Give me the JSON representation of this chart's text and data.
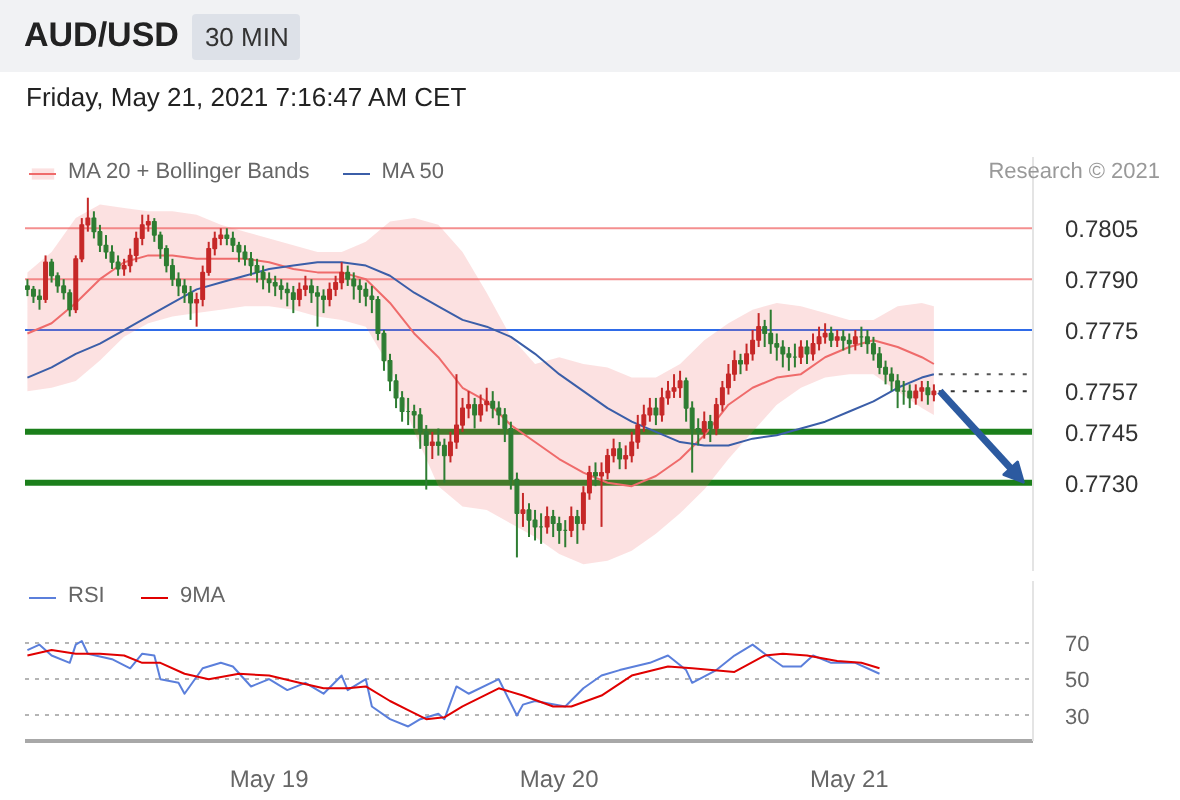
{
  "chart_data": [
    {
      "type": "candlestick",
      "title": "AUD/USD",
      "subtitle": "Friday, May 21, 2021 7:16:47 AM CET",
      "annotations": [
        "30 MIN",
        "Research © 2021"
      ],
      "x": [
        "2021-05-18T04:00",
        "2021-05-18T04:30",
        "2021-05-18T05:00",
        "2021-05-18T05:30",
        "2021-05-18T06:00",
        "2021-05-18T06:30",
        "2021-05-18T07:00",
        "2021-05-18T07:30",
        "2021-05-18T08:00",
        "2021-05-18T08:30",
        "2021-05-18T09:00",
        "2021-05-18T09:30",
        "2021-05-18T10:00",
        "2021-05-18T10:30",
        "2021-05-18T11:00",
        "2021-05-18T11:30",
        "2021-05-18T12:00",
        "2021-05-18T12:30",
        "2021-05-18T13:00",
        "2021-05-18T13:30",
        "2021-05-18T14:00",
        "2021-05-18T14:30",
        "2021-05-18T15:00",
        "2021-05-18T15:30",
        "2021-05-18T16:00",
        "2021-05-18T16:30",
        "2021-05-18T17:00",
        "2021-05-18T17:30",
        "2021-05-18T18:00",
        "2021-05-18T18:30",
        "2021-05-18T19:00",
        "2021-05-18T19:30",
        "2021-05-18T20:00",
        "2021-05-18T20:30",
        "2021-05-18T21:00",
        "2021-05-18T21:30",
        "2021-05-18T22:00",
        "2021-05-18T22:30",
        "2021-05-18T23:00",
        "2021-05-18T23:30",
        "2021-05-19T00:00",
        "2021-05-19T00:30",
        "2021-05-19T01:00",
        "2021-05-19T01:30",
        "2021-05-19T02:00",
        "2021-05-19T02:30",
        "2021-05-19T03:00",
        "2021-05-19T03:30",
        "2021-05-19T04:00",
        "2021-05-19T04:30",
        "2021-05-19T05:00",
        "2021-05-19T05:30",
        "2021-05-19T06:00",
        "2021-05-19T06:30",
        "2021-05-19T07:00",
        "2021-05-19T07:30",
        "2021-05-19T08:00",
        "2021-05-19T08:30",
        "2021-05-19T09:00",
        "2021-05-19T09:30",
        "2021-05-19T10:00",
        "2021-05-19T10:30",
        "2021-05-19T11:00",
        "2021-05-19T11:30",
        "2021-05-19T12:00",
        "2021-05-19T12:30",
        "2021-05-19T13:00",
        "2021-05-19T13:30",
        "2021-05-19T14:00",
        "2021-05-19T14:30",
        "2021-05-19T15:00",
        "2021-05-19T15:30",
        "2021-05-19T16:00",
        "2021-05-19T16:30",
        "2021-05-19T17:00",
        "2021-05-19T17:30",
        "2021-05-19T18:00",
        "2021-05-19T18:30",
        "2021-05-19T19:00",
        "2021-05-19T19:30",
        "2021-05-19T20:00",
        "2021-05-19T20:30",
        "2021-05-19T21:00",
        "2021-05-19T21:30",
        "2021-05-19T22:00",
        "2021-05-19T22:30",
        "2021-05-19T23:00",
        "2021-05-19T23:30",
        "2021-05-20T00:00",
        "2021-05-20T00:30",
        "2021-05-20T01:00",
        "2021-05-20T01:30",
        "2021-05-20T02:00",
        "2021-05-20T02:30",
        "2021-05-20T03:00",
        "2021-05-20T03:30",
        "2021-05-20T04:00",
        "2021-05-20T04:30",
        "2021-05-20T05:00",
        "2021-05-20T05:30",
        "2021-05-20T06:00",
        "2021-05-20T06:30",
        "2021-05-20T07:00",
        "2021-05-20T07:30",
        "2021-05-20T08:00",
        "2021-05-20T08:30",
        "2021-05-20T09:00",
        "2021-05-20T09:30",
        "2021-05-20T10:00",
        "2021-05-20T10:30",
        "2021-05-20T11:00",
        "2021-05-20T11:30",
        "2021-05-20T12:00",
        "2021-05-20T12:30",
        "2021-05-20T13:00",
        "2021-05-20T13:30",
        "2021-05-20T14:00",
        "2021-05-20T14:30",
        "2021-05-20T15:00",
        "2021-05-20T15:30",
        "2021-05-20T16:00",
        "2021-05-20T16:30",
        "2021-05-20T17:00",
        "2021-05-20T17:30",
        "2021-05-20T18:00",
        "2021-05-20T18:30",
        "2021-05-20T19:00",
        "2021-05-20T19:30",
        "2021-05-20T20:00",
        "2021-05-20T20:30",
        "2021-05-20T21:00",
        "2021-05-20T21:30",
        "2021-05-20T22:00",
        "2021-05-20T22:30",
        "2021-05-20T23:00",
        "2021-05-20T23:30",
        "2021-05-21T00:00",
        "2021-05-21T00:30",
        "2021-05-21T01:00",
        "2021-05-21T01:30",
        "2021-05-21T02:00",
        "2021-05-21T02:30",
        "2021-05-21T03:00",
        "2021-05-21T03:30",
        "2021-05-21T04:00",
        "2021-05-21T04:30",
        "2021-05-21T05:00",
        "2021-05-21T05:30",
        "2021-05-21T06:00",
        "2021-05-21T06:30",
        "2021-05-21T07:00"
      ],
      "ohlc": [
        [
          0.7788,
          0.779,
          0.7785,
          0.7787
        ],
        [
          0.7787,
          0.7788,
          0.7783,
          0.7785
        ],
        [
          0.7785,
          0.7787,
          0.7781,
          0.7784
        ],
        [
          0.7784,
          0.7797,
          0.7783,
          0.7795
        ],
        [
          0.7795,
          0.7796,
          0.7789,
          0.7791
        ],
        [
          0.7791,
          0.7792,
          0.7786,
          0.7788
        ],
        [
          0.7788,
          0.779,
          0.7784,
          0.7786
        ],
        [
          0.7786,
          0.7787,
          0.7779,
          0.7781
        ],
        [
          0.7781,
          0.7797,
          0.778,
          0.7796
        ],
        [
          0.7796,
          0.7808,
          0.7795,
          0.7806
        ],
        [
          0.7806,
          0.7814,
          0.7804,
          0.7808
        ],
        [
          0.7808,
          0.781,
          0.7802,
          0.7804
        ],
        [
          0.7804,
          0.7806,
          0.7798,
          0.78
        ],
        [
          0.78,
          0.7803,
          0.7796,
          0.7798
        ],
        [
          0.7798,
          0.78,
          0.7793,
          0.7795
        ],
        [
          0.7795,
          0.7797,
          0.7791,
          0.7793
        ],
        [
          0.7793,
          0.7796,
          0.7791,
          0.7794
        ],
        [
          0.7794,
          0.7799,
          0.7792,
          0.7797
        ],
        [
          0.7797,
          0.7804,
          0.7795,
          0.7802
        ],
        [
          0.7802,
          0.7809,
          0.78,
          0.7806
        ],
        [
          0.7806,
          0.7809,
          0.7804,
          0.7807
        ],
        [
          0.7807,
          0.7808,
          0.7801,
          0.7803
        ],
        [
          0.7803,
          0.7804,
          0.7796,
          0.7799
        ],
        [
          0.7799,
          0.78,
          0.7792,
          0.7794
        ],
        [
          0.7794,
          0.7796,
          0.7788,
          0.779
        ],
        [
          0.779,
          0.7792,
          0.7785,
          0.7788
        ],
        [
          0.7788,
          0.779,
          0.7783,
          0.7786
        ],
        [
          0.7786,
          0.7788,
          0.7778,
          0.7783
        ],
        [
          0.7783,
          0.7786,
          0.7776,
          0.7784
        ],
        [
          0.7784,
          0.7794,
          0.7782,
          0.7792
        ],
        [
          0.7792,
          0.7801,
          0.7791,
          0.7799
        ],
        [
          0.7799,
          0.7804,
          0.7797,
          0.7802
        ],
        [
          0.7802,
          0.7805,
          0.78,
          0.7803
        ],
        [
          0.7803,
          0.7805,
          0.78,
          0.7802
        ],
        [
          0.7802,
          0.7804,
          0.7798,
          0.78
        ],
        [
          0.78,
          0.7801,
          0.7795,
          0.7798
        ],
        [
          0.7798,
          0.78,
          0.7794,
          0.7796
        ],
        [
          0.7796,
          0.7798,
          0.7791,
          0.7794
        ],
        [
          0.7794,
          0.7796,
          0.7789,
          0.7792
        ],
        [
          0.7792,
          0.7794,
          0.7787,
          0.779
        ],
        [
          0.779,
          0.7792,
          0.7786,
          0.7789
        ],
        [
          0.7789,
          0.7791,
          0.7785,
          0.7788
        ],
        [
          0.7788,
          0.779,
          0.7784,
          0.7787
        ],
        [
          0.7787,
          0.7789,
          0.7782,
          0.7786
        ],
        [
          0.7786,
          0.7788,
          0.778,
          0.7784
        ],
        [
          0.7784,
          0.7789,
          0.7782,
          0.7787
        ],
        [
          0.7787,
          0.7791,
          0.7785,
          0.7788
        ],
        [
          0.7788,
          0.779,
          0.7783,
          0.7786
        ],
        [
          0.7786,
          0.7788,
          0.7776,
          0.7785
        ],
        [
          0.7785,
          0.7787,
          0.778,
          0.7784
        ],
        [
          0.7784,
          0.7789,
          0.7782,
          0.7787
        ],
        [
          0.7787,
          0.7791,
          0.7785,
          0.7789
        ],
        [
          0.7789,
          0.7795,
          0.7787,
          0.7792
        ],
        [
          0.7792,
          0.7794,
          0.7788,
          0.779
        ],
        [
          0.779,
          0.7792,
          0.7784,
          0.7788
        ],
        [
          0.7788,
          0.779,
          0.7783,
          0.7787
        ],
        [
          0.7787,
          0.7789,
          0.7782,
          0.7785
        ],
        [
          0.7785,
          0.7788,
          0.778,
          0.7784
        ],
        [
          0.7784,
          0.7785,
          0.7772,
          0.7774
        ],
        [
          0.7774,
          0.7775,
          0.7763,
          0.7766
        ],
        [
          0.7766,
          0.7768,
          0.7757,
          0.776
        ],
        [
          0.776,
          0.7762,
          0.7752,
          0.7755
        ],
        [
          0.7755,
          0.7757,
          0.7748,
          0.7751
        ],
        [
          0.7751,
          0.7755,
          0.7747,
          0.7751
        ],
        [
          0.7751,
          0.7753,
          0.7746,
          0.775
        ],
        [
          0.775,
          0.7752,
          0.774,
          0.7745
        ],
        [
          0.7745,
          0.7747,
          0.7728,
          0.7741
        ],
        [
          0.7741,
          0.7745,
          0.7737,
          0.7742
        ],
        [
          0.7742,
          0.7746,
          0.7738,
          0.7741
        ],
        [
          0.7741,
          0.7743,
          0.773,
          0.7738
        ],
        [
          0.7738,
          0.7745,
          0.7736,
          0.7742
        ],
        [
          0.7742,
          0.7762,
          0.774,
          0.7747
        ],
        [
          0.7747,
          0.7755,
          0.7745,
          0.7752
        ],
        [
          0.7752,
          0.7757,
          0.7749,
          0.7753
        ],
        [
          0.7753,
          0.7755,
          0.7746,
          0.775
        ],
        [
          0.775,
          0.7756,
          0.7748,
          0.7753
        ],
        [
          0.7753,
          0.7758,
          0.7751,
          0.7754
        ],
        [
          0.7754,
          0.7757,
          0.7749,
          0.7752
        ],
        [
          0.7752,
          0.7754,
          0.7747,
          0.775
        ],
        [
          0.775,
          0.7752,
          0.7742,
          0.7746
        ],
        [
          0.7746,
          0.7748,
          0.7728,
          0.7731
        ],
        [
          0.7731,
          0.7733,
          0.7708,
          0.7721
        ],
        [
          0.7721,
          0.7727,
          0.7717,
          0.7722
        ],
        [
          0.7722,
          0.7724,
          0.7714,
          0.7719
        ],
        [
          0.7719,
          0.7722,
          0.7713,
          0.7717
        ],
        [
          0.7717,
          0.7721,
          0.7712,
          0.7717
        ],
        [
          0.7717,
          0.7723,
          0.7715,
          0.772
        ],
        [
          0.772,
          0.7722,
          0.7714,
          0.7718
        ],
        [
          0.7718,
          0.772,
          0.7712,
          0.7716
        ],
        [
          0.7716,
          0.7719,
          0.7711,
          0.7716
        ],
        [
          0.7716,
          0.7723,
          0.7714,
          0.772
        ],
        [
          0.772,
          0.7722,
          0.7712,
          0.7718
        ],
        [
          0.7718,
          0.7729,
          0.7716,
          0.7727
        ],
        [
          0.7727,
          0.7735,
          0.7725,
          0.7733
        ],
        [
          0.7733,
          0.7736,
          0.7729,
          0.7732
        ],
        [
          0.7732,
          0.7736,
          0.7717,
          0.7733
        ],
        [
          0.7733,
          0.774,
          0.7731,
          0.7738
        ],
        [
          0.7738,
          0.7743,
          0.7736,
          0.774
        ],
        [
          0.774,
          0.7742,
          0.7734,
          0.7737
        ],
        [
          0.7737,
          0.7741,
          0.7734,
          0.7738
        ],
        [
          0.7738,
          0.7745,
          0.7736,
          0.7742
        ],
        [
          0.7742,
          0.775,
          0.774,
          0.7747
        ],
        [
          0.7747,
          0.7753,
          0.7745,
          0.775
        ],
        [
          0.775,
          0.7755,
          0.7748,
          0.7752
        ],
        [
          0.7752,
          0.7755,
          0.7747,
          0.775
        ],
        [
          0.775,
          0.7758,
          0.7748,
          0.7755
        ],
        [
          0.7755,
          0.776,
          0.7753,
          0.7757
        ],
        [
          0.7757,
          0.7762,
          0.7755,
          0.7758
        ],
        [
          0.7758,
          0.7763,
          0.7755,
          0.776
        ],
        [
          0.776,
          0.7761,
          0.7748,
          0.7752
        ],
        [
          0.7752,
          0.7754,
          0.7733,
          0.7746
        ],
        [
          0.7746,
          0.7749,
          0.7741,
          0.7745
        ],
        [
          0.7745,
          0.7751,
          0.7743,
          0.7748
        ],
        [
          0.7748,
          0.775,
          0.7742,
          0.7746
        ],
        [
          0.7746,
          0.7755,
          0.7744,
          0.7753
        ],
        [
          0.7753,
          0.776,
          0.7751,
          0.7758
        ],
        [
          0.7758,
          0.7765,
          0.7756,
          0.7762
        ],
        [
          0.7762,
          0.7769,
          0.776,
          0.7766
        ],
        [
          0.7766,
          0.7768,
          0.7762,
          0.7765
        ],
        [
          0.7765,
          0.7771,
          0.7763,
          0.7768
        ],
        [
          0.7768,
          0.7775,
          0.7766,
          0.7772
        ],
        [
          0.7772,
          0.778,
          0.777,
          0.7776
        ],
        [
          0.7776,
          0.7778,
          0.777,
          0.7774
        ],
        [
          0.7774,
          0.7781,
          0.7768,
          0.7771
        ],
        [
          0.7771,
          0.7774,
          0.7766,
          0.777
        ],
        [
          0.777,
          0.7772,
          0.7764,
          0.7768
        ],
        [
          0.7768,
          0.777,
          0.7763,
          0.7767
        ],
        [
          0.7767,
          0.7771,
          0.7764,
          0.7767
        ],
        [
          0.7767,
          0.7772,
          0.7765,
          0.777
        ],
        [
          0.777,
          0.7772,
          0.7765,
          0.7768
        ],
        [
          0.7768,
          0.7774,
          0.7766,
          0.7771
        ],
        [
          0.7771,
          0.7776,
          0.7769,
          0.7773
        ],
        [
          0.7773,
          0.7777,
          0.7771,
          0.7774
        ],
        [
          0.7774,
          0.7776,
          0.777,
          0.7772
        ],
        [
          0.7772,
          0.7775,
          0.777,
          0.7773
        ],
        [
          0.7773,
          0.7775,
          0.7769,
          0.7772
        ],
        [
          0.7772,
          0.7774,
          0.7768,
          0.7771
        ],
        [
          0.7771,
          0.7775,
          0.7769,
          0.7773
        ],
        [
          0.7773,
          0.7776,
          0.777,
          0.7773
        ],
        [
          0.7773,
          0.7775,
          0.7768,
          0.7771
        ],
        [
          0.7771,
          0.7773,
          0.7766,
          0.7768
        ],
        [
          0.7768,
          0.777,
          0.7762,
          0.7764
        ],
        [
          0.7764,
          0.7766,
          0.7759,
          0.7762
        ],
        [
          0.7762,
          0.7764,
          0.7757,
          0.776
        ],
        [
          0.776,
          0.7762,
          0.7752,
          0.7757
        ],
        [
          0.7757,
          0.776,
          0.7753,
          0.7757
        ],
        [
          0.7757,
          0.7759,
          0.7752,
          0.7755
        ],
        [
          0.7755,
          0.7759,
          0.7753,
          0.7757
        ],
        [
          0.7757,
          0.776,
          0.7754,
          0.7758
        ],
        [
          0.7758,
          0.776,
          0.7753,
          0.7756
        ],
        [
          0.7756,
          0.7759,
          0.7754,
          0.7757
        ]
      ],
      "colors": [
        "#2e7d32",
        "#2e7d32",
        "#2e7d32",
        "#c62828",
        "#2e7d32",
        "#2e7d32",
        "#2e7d32",
        "#2e7d32",
        "#c62828",
        "#c62828",
        "#c62828",
        "#2e7d32",
        "#2e7d32",
        "#2e7d32",
        "#2e7d32",
        "#2e7d32",
        "#c62828",
        "#c62828",
        "#c62828",
        "#c62828",
        "#c62828",
        "#2e7d32",
        "#2e7d32",
        "#2e7d32",
        "#2e7d32",
        "#2e7d32",
        "#2e7d32",
        "#2e7d32",
        "#c62828",
        "#c62828",
        "#c62828",
        "#c62828",
        "#c62828",
        "#2e7d32",
        "#2e7d32",
        "#2e7d32",
        "#2e7d32",
        "#2e7d32",
        "#2e7d32",
        "#2e7d32",
        "#2e7d32",
        "#2e7d32",
        "#2e7d32",
        "#2e7d32",
        "#2e7d32",
        "#c62828",
        "#c62828",
        "#2e7d32",
        "#2e7d32",
        "#2e7d32",
        "#c62828",
        "#c62828",
        "#c62828",
        "#2e7d32",
        "#2e7d32",
        "#2e7d32",
        "#2e7d32",
        "#2e7d32",
        "#2e7d32",
        "#2e7d32",
        "#2e7d32",
        "#2e7d32",
        "#2e7d32",
        "#2e7d32",
        "#2e7d32",
        "#2e7d32",
        "#2e7d32",
        "#c62828",
        "#2e7d32",
        "#2e7d32",
        "#c62828",
        "#c62828",
        "#c62828",
        "#c62828",
        "#2e7d32",
        "#c62828",
        "#c62828",
        "#2e7d32",
        "#2e7d32",
        "#2e7d32",
        "#2e7d32",
        "#2e7d32",
        "#c62828",
        "#2e7d32",
        "#2e7d32",
        "#2e7d32",
        "#c62828",
        "#2e7d32",
        "#2e7d32",
        "#2e7d32",
        "#c62828",
        "#2e7d32",
        "#c62828",
        "#c62828",
        "#2e7d32",
        "#c62828",
        "#c62828",
        "#c62828",
        "#2e7d32",
        "#c62828",
        "#c62828",
        "#c62828",
        "#c62828",
        "#c62828",
        "#2e7d32",
        "#c62828",
        "#c62828",
        "#c62828",
        "#c62828",
        "#2e7d32",
        "#2e7d32",
        "#2e7d32",
        "#c62828",
        "#2e7d32",
        "#c62828",
        "#c62828",
        "#c62828",
        "#c62828",
        "#2e7d32",
        "#c62828",
        "#c62828",
        "#c62828",
        "#2e7d32",
        "#2e7d32",
        "#2e7d32",
        "#2e7d32",
        "#2e7d32",
        "#2e7d32",
        "#c62828",
        "#2e7d32",
        "#c62828",
        "#c62828",
        "#c62828",
        "#2e7d32",
        "#c62828",
        "#2e7d32",
        "#2e7d32",
        "#c62828",
        "#2e7d32",
        "#2e7d32",
        "#2e7d32",
        "#2e7d32",
        "#2e7d32",
        "#2e7d32",
        "#2e7d32",
        "#2e7d32",
        "#2e7d32",
        "#c62828",
        "#c62828",
        "#2e7d32",
        "#c62828"
      ],
      "xlim": [
        "2021-05-18T03:48",
        "2021-05-21T15:12"
      ],
      "ylim": [
        0.7704,
        0.7826
      ],
      "yticks": [
        {
          "value": 0.773,
          "label": "0.7730"
        },
        0.7745,
        0.7757,
        0.7775,
        {
          "value": 0.779,
          "label": "0.7790"
        },
        0.7805
      ],
      "tick_labels": "y",
      "legend": "top left",
      "series": [
        {
          "name": "MA 20 + Bollinger Bands",
          "type": "line",
          "color": "#ef6b6b",
          "x": [
            "2021-05-18T04:00",
            "2021-05-18T06:00",
            "2021-05-18T08:00",
            "2021-05-18T10:00",
            "2021-05-18T12:00",
            "2021-05-18T14:00",
            "2021-05-18T16:00",
            "2021-05-18T18:00",
            "2021-05-18T20:00",
            "2021-05-18T22:00",
            "2021-05-19T00:00",
            "2021-05-19T02:00",
            "2021-05-19T04:00",
            "2021-05-19T06:00",
            "2021-05-19T08:00",
            "2021-05-19T10:00",
            "2021-05-19T12:00",
            "2021-05-19T14:00",
            "2021-05-19T16:00",
            "2021-05-19T18:00",
            "2021-05-19T20:00",
            "2021-05-19T22:00",
            "2021-05-20T00:00",
            "2021-05-20T02:00",
            "2021-05-20T04:00",
            "2021-05-20T06:00",
            "2021-05-20T08:00",
            "2021-05-20T10:00",
            "2021-05-20T12:00",
            "2021-05-20T14:00",
            "2021-05-20T16:00",
            "2021-05-20T18:00",
            "2021-05-20T20:00",
            "2021-05-20T22:00",
            "2021-05-21T00:00",
            "2021-05-21T02:00",
            "2021-05-21T04:00",
            "2021-05-21T06:00",
            "2021-05-21T07:00"
          ],
          "values": [
            0.7774,
            0.7777,
            0.7783,
            0.779,
            0.7795,
            0.7797,
            0.7797,
            0.7796,
            0.7796,
            0.7796,
            0.7795,
            0.7793,
            0.7792,
            0.7792,
            0.779,
            0.7783,
            0.7774,
            0.7767,
            0.7758,
            0.7754,
            0.7747,
            0.7742,
            0.7737,
            0.7733,
            0.773,
            0.7729,
            0.7732,
            0.7737,
            0.7744,
            0.7753,
            0.7758,
            0.7761,
            0.7762,
            0.7767,
            0.777,
            0.7772,
            0.777,
            0.7767,
            0.7765
          ],
          "upper": [
            0.7792,
            0.7798,
            0.7808,
            0.7812,
            0.7811,
            0.781,
            0.781,
            0.7809,
            0.7806,
            0.7804,
            0.7802,
            0.78,
            0.7798,
            0.7798,
            0.7801,
            0.7807,
            0.7808,
            0.7806,
            0.7798,
            0.7786,
            0.7773,
            0.7765,
            0.7767,
            0.7765,
            0.7764,
            0.7761,
            0.7761,
            0.7765,
            0.7772,
            0.7777,
            0.7781,
            0.7783,
            0.7782,
            0.778,
            0.7778,
            0.7778,
            0.7782,
            0.7783,
            0.7782
          ],
          "lower": [
            0.7757,
            0.7758,
            0.776,
            0.7766,
            0.7773,
            0.7777,
            0.7779,
            0.778,
            0.7781,
            0.7782,
            0.7782,
            0.7781,
            0.7779,
            0.7778,
            0.7776,
            0.7764,
            0.7745,
            0.7729,
            0.7723,
            0.7722,
            0.7718,
            0.7714,
            0.7709,
            0.7706,
            0.7707,
            0.771,
            0.7715,
            0.7721,
            0.7728,
            0.7737,
            0.7745,
            0.7753,
            0.7758,
            0.7761,
            0.7762,
            0.7762,
            0.7757,
            0.7752,
            0.775
          ]
        },
        {
          "name": "MA 50",
          "type": "line",
          "color": "#3b5ea8",
          "x": [
            "2021-05-18T04:00",
            "2021-05-18T06:00",
            "2021-05-18T08:00",
            "2021-05-18T10:00",
            "2021-05-18T12:00",
            "2021-05-18T14:00",
            "2021-05-18T16:00",
            "2021-05-18T18:00",
            "2021-05-18T20:00",
            "2021-05-18T22:00",
            "2021-05-19T00:00",
            "2021-05-19T02:00",
            "2021-05-19T04:00",
            "2021-05-19T06:00",
            "2021-05-19T08:00",
            "2021-05-19T10:00",
            "2021-05-19T12:00",
            "2021-05-19T14:00",
            "2021-05-19T16:00",
            "2021-05-19T18:00",
            "2021-05-19T20:00",
            "2021-05-19T22:00",
            "2021-05-20T00:00",
            "2021-05-20T02:00",
            "2021-05-20T04:00",
            "2021-05-20T06:00",
            "2021-05-20T08:00",
            "2021-05-20T10:00",
            "2021-05-20T12:00",
            "2021-05-20T14:00",
            "2021-05-20T16:00",
            "2021-05-20T18:00",
            "2021-05-20T20:00",
            "2021-05-20T22:00",
            "2021-05-21T00:00",
            "2021-05-21T02:00",
            "2021-05-21T04:00",
            "2021-05-21T06:00",
            "2021-05-21T07:00"
          ],
          "values": [
            0.7761,
            0.7764,
            0.7768,
            0.7771,
            0.7775,
            0.7779,
            0.7783,
            0.7787,
            0.7789,
            0.7791,
            0.7793,
            0.7794,
            0.7795,
            0.7795,
            0.7794,
            0.7791,
            0.7786,
            0.7782,
            0.7778,
            0.7776,
            0.7773,
            0.7768,
            0.7762,
            0.7757,
            0.7752,
            0.7748,
            0.7745,
            0.7742,
            0.7741,
            0.7741,
            0.7743,
            0.7744,
            0.7746,
            0.7748,
            0.7751,
            0.7754,
            0.7758,
            0.7761,
            0.7762
          ]
        }
      ],
      "ref_lines": [
        {
          "axis": "y",
          "value": 0.7805,
          "color": "#f06060"
        },
        {
          "axis": "y",
          "value": 0.779,
          "color": "#f06060"
        },
        {
          "axis": "y",
          "value": 0.7775,
          "color": "#2f6be8"
        },
        {
          "axis": "y",
          "value": 0.7762,
          "color": "#555555",
          "line_style": "dotted"
        },
        {
          "axis": "y",
          "value": 0.7757,
          "color": "#333333",
          "line_style": "dotted"
        },
        {
          "axis": "y",
          "value": 0.7745,
          "color": "#1b7f1b"
        },
        {
          "axis": "y",
          "value": 0.773,
          "color": "#1b7f1b"
        }
      ]
    },
    {
      "type": "line",
      "xlim": [
        "2021-05-18T03:48",
        "2021-05-21T15:12"
      ],
      "xticks": [
        {
          "value": "2021-05-19",
          "label": "May 19"
        },
        {
          "value": "2021-05-20",
          "label": "May 20"
        },
        {
          "value": "2021-05-21",
          "label": "May 21"
        }
      ],
      "ylim": [
        16,
        104
      ],
      "yticks": [
        30,
        50,
        70
      ],
      "grid": "y",
      "legend": "top left",
      "series": [
        {
          "name": "RSI",
          "color": "#5b7fdb",
          "x": [
            "2021-05-18T04:00",
            "2021-05-18T05:00",
            "2021-05-18T06:00",
            "2021-05-18T07:30",
            "2021-05-18T08:00",
            "2021-05-18T08:30",
            "2021-05-18T09:00",
            "2021-05-18T11:00",
            "2021-05-18T12:30",
            "2021-05-18T13:30",
            "2021-05-18T14:30",
            "2021-05-18T15:00",
            "2021-05-18T16:30",
            "2021-05-18T17:00",
            "2021-05-18T18:30",
            "2021-05-18T20:00",
            "2021-05-18T21:00",
            "2021-05-18T22:30",
            "2021-05-19T00:00",
            "2021-05-19T01:30",
            "2021-05-19T03:00",
            "2021-05-19T04:30",
            "2021-05-19T06:00",
            "2021-05-19T06:30",
            "2021-05-19T08:00",
            "2021-05-19T08:30",
            "2021-05-19T10:00",
            "2021-05-19T11:30",
            "2021-05-19T12:30",
            "2021-05-19T14:00",
            "2021-05-19T14:30",
            "2021-05-19T15:30",
            "2021-05-19T16:30",
            "2021-05-19T19:00",
            "2021-05-19T20:30",
            "2021-05-19T21:00",
            "2021-05-19T22:00",
            "2021-05-20T00:30",
            "2021-05-20T02:00",
            "2021-05-20T03:30",
            "2021-05-20T05:00",
            "2021-05-20T07:30",
            "2021-05-20T09:00",
            "2021-05-20T10:30",
            "2021-05-20T11:00",
            "2021-05-20T13:00",
            "2021-05-20T14:30",
            "2021-05-20T16:00",
            "2021-05-20T17:00",
            "2021-05-20T18:30",
            "2021-05-20T20:00",
            "2021-05-20T21:00",
            "2021-05-20T22:30",
            "2021-05-21T00:30",
            "2021-05-21T02:30"
          ],
          "values": [
            66,
            69,
            63,
            59,
            69,
            71,
            64,
            61,
            56,
            64,
            63,
            50,
            48,
            42,
            56,
            59,
            57,
            46,
            50,
            44,
            48,
            42,
            52,
            44,
            50,
            35,
            28,
            24,
            28,
            31,
            28,
            46,
            42,
            50,
            30,
            36,
            38,
            35,
            45,
            52,
            55,
            59,
            63,
            55,
            48,
            55,
            63,
            69,
            64,
            57,
            57,
            63,
            59,
            59,
            53
          ]
        },
        {
          "name": "9MA",
          "color": "#e00000",
          "x": [
            "2021-05-18T04:00",
            "2021-05-18T06:00",
            "2021-05-18T08:00",
            "2021-05-18T10:00",
            "2021-05-18T12:00",
            "2021-05-18T13:30",
            "2021-05-18T15:00",
            "2021-05-18T17:00",
            "2021-05-18T19:00",
            "2021-05-18T21:30",
            "2021-05-19T00:00",
            "2021-05-19T02:30",
            "2021-05-19T04:30",
            "2021-05-19T06:30",
            "2021-05-19T08:00",
            "2021-05-19T10:00",
            "2021-05-19T11:30",
            "2021-05-19T13:00",
            "2021-05-19T14:30",
            "2021-05-19T16:00",
            "2021-05-19T19:00",
            "2021-05-19T21:00",
            "2021-05-19T23:30",
            "2021-05-20T01:00",
            "2021-05-20T03:30",
            "2021-05-20T06:00",
            "2021-05-20T09:00",
            "2021-05-20T11:00",
            "2021-05-20T14:30",
            "2021-05-20T17:00",
            "2021-05-20T18:30",
            "2021-05-20T20:30",
            "2021-05-20T23:00",
            "2021-05-21T01:00",
            "2021-05-21T02:30"
          ],
          "values": [
            63,
            66,
            64,
            64,
            63,
            59,
            59,
            53,
            50,
            53,
            52,
            48,
            45,
            45,
            46,
            38,
            33,
            28,
            29,
            35,
            45,
            41,
            35,
            35,
            41,
            52,
            57,
            56,
            54,
            63,
            64,
            63,
            60,
            59,
            56
          ]
        }
      ]
    }
  ]
}
